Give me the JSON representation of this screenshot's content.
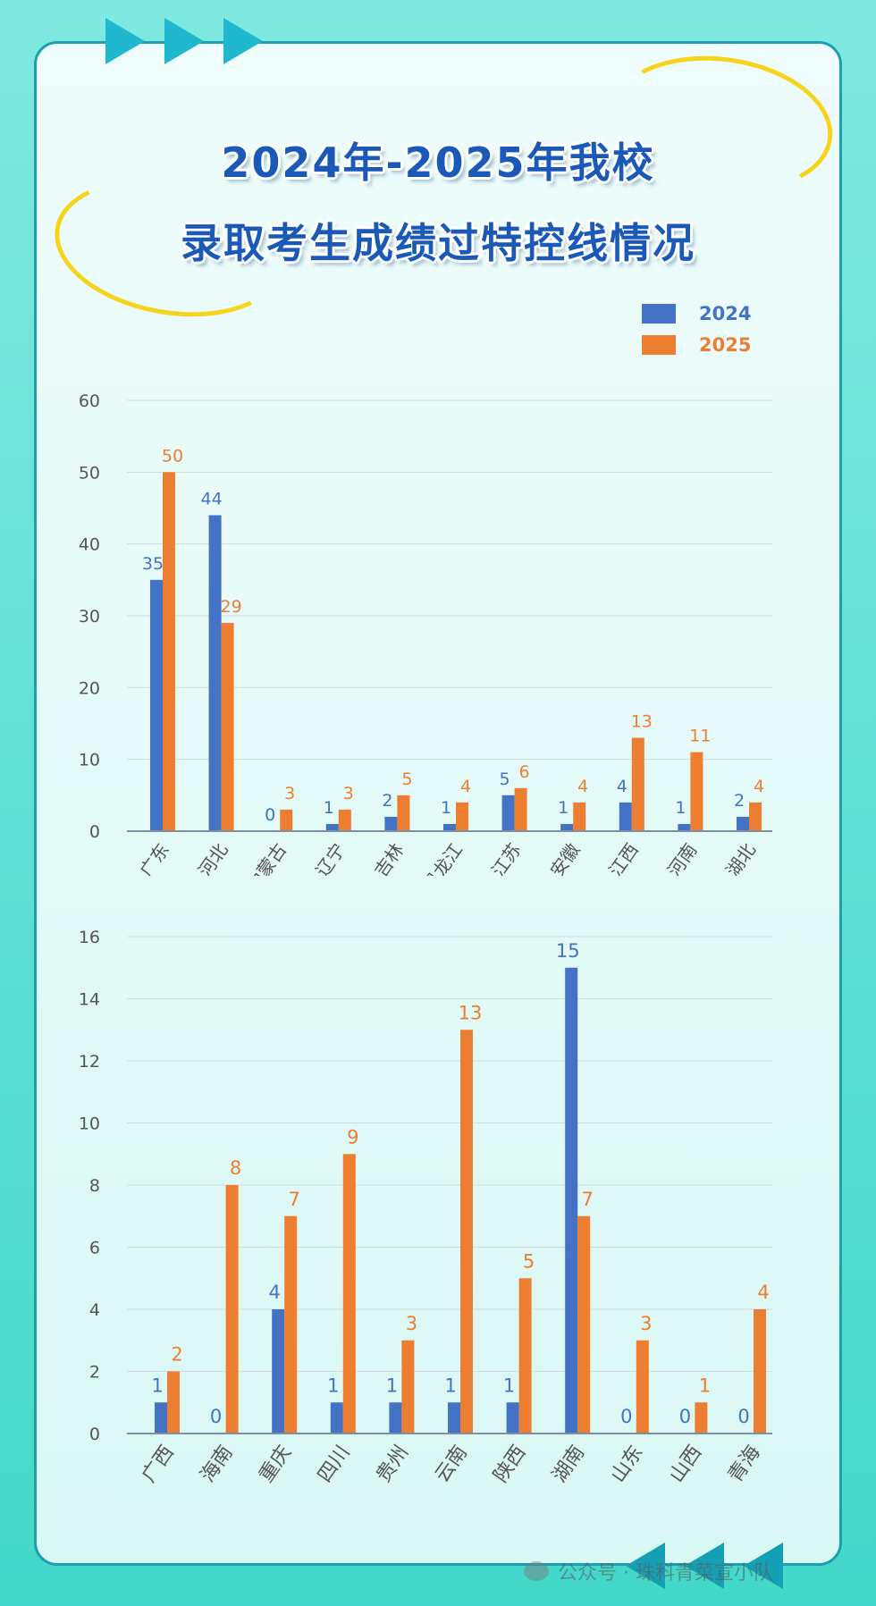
{
  "title_line1": "2024年-2025年我校",
  "title_line2": "录取考生成绩过特控线情况",
  "legend": [
    {
      "label": "2024",
      "color": "#4472c4"
    },
    {
      "label": "2025",
      "color": "#ed7d31"
    }
  ],
  "watermark": "公众号 · 珠科青菜宣小队",
  "chart_data": [
    {
      "type": "bar",
      "categories": [
        "广东",
        "河北",
        "内蒙古",
        "辽宁",
        "吉林",
        "黑龙江",
        "江苏",
        "安徽",
        "江西",
        "河南",
        "湖北"
      ],
      "series": [
        {
          "name": "2024",
          "values": [
            35,
            44,
            0,
            1,
            2,
            1,
            5,
            1,
            4,
            1,
            2
          ]
        },
        {
          "name": "2025",
          "values": [
            50,
            29,
            3,
            3,
            5,
            4,
            6,
            4,
            13,
            11,
            4
          ]
        }
      ],
      "ylim": [
        0,
        60
      ],
      "yticks": [
        0,
        10,
        20,
        30,
        40,
        50,
        60
      ],
      "grid": true
    },
    {
      "type": "bar",
      "categories": [
        "广西",
        "海南",
        "重庆",
        "四川",
        "贵州",
        "云南",
        "陕西",
        "湖南",
        "山东",
        "山西",
        "青海"
      ],
      "series": [
        {
          "name": "2024",
          "values": [
            1,
            0,
            4,
            1,
            1,
            1,
            1,
            15,
            0,
            0,
            0
          ]
        },
        {
          "name": "2025",
          "values": [
            2,
            8,
            7,
            9,
            3,
            13,
            5,
            7,
            3,
            1,
            4
          ]
        }
      ],
      "ylim": [
        0,
        16
      ],
      "yticks": [
        0,
        2,
        4,
        6,
        8,
        10,
        12,
        14,
        16
      ],
      "grid": true
    }
  ]
}
